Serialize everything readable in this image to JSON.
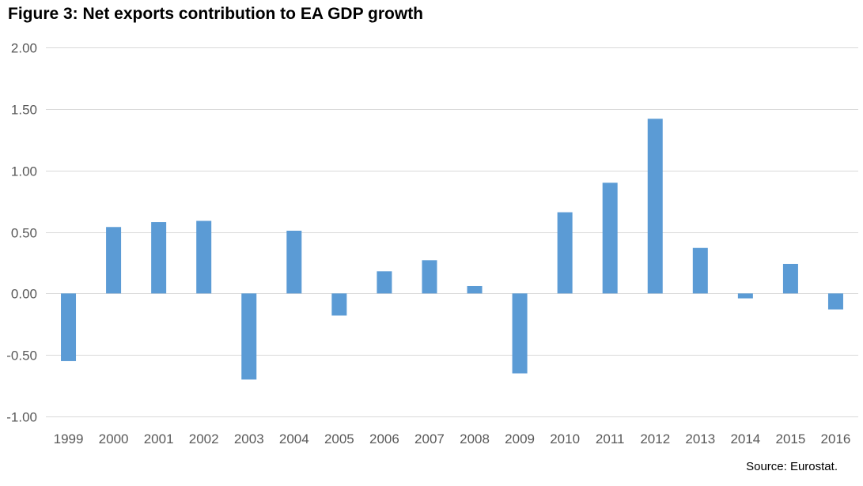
{
  "chart_data": {
    "type": "bar",
    "title": "Figure 3: Net exports contribution to EA GDP growth",
    "xlabel": "",
    "ylabel": "",
    "categories": [
      "1999",
      "2000",
      "2001",
      "2002",
      "2003",
      "2004",
      "2005",
      "2006",
      "2007",
      "2008",
      "2009",
      "2010",
      "2011",
      "2012",
      "2013",
      "2014",
      "2015",
      "2016"
    ],
    "values": [
      -0.55,
      0.54,
      0.58,
      0.59,
      -0.7,
      0.51,
      -0.18,
      0.18,
      0.27,
      0.06,
      -0.65,
      0.66,
      0.9,
      1.42,
      0.37,
      -0.04,
      0.24,
      -0.13
    ],
    "ylim": [
      -1.0,
      2.0
    ],
    "yticks": [
      -1.0,
      -0.5,
      0.0,
      0.5,
      1.0,
      1.5,
      2.0
    ],
    "ytick_labels": [
      "-1.00",
      "-0.50",
      "0.00",
      "0.50",
      "1.00",
      "1.50",
      "2.00"
    ],
    "grid": true,
    "bar_color": "#5B9BD5",
    "grid_color": "#D9D9D9",
    "source": "Source: Eurostat."
  }
}
